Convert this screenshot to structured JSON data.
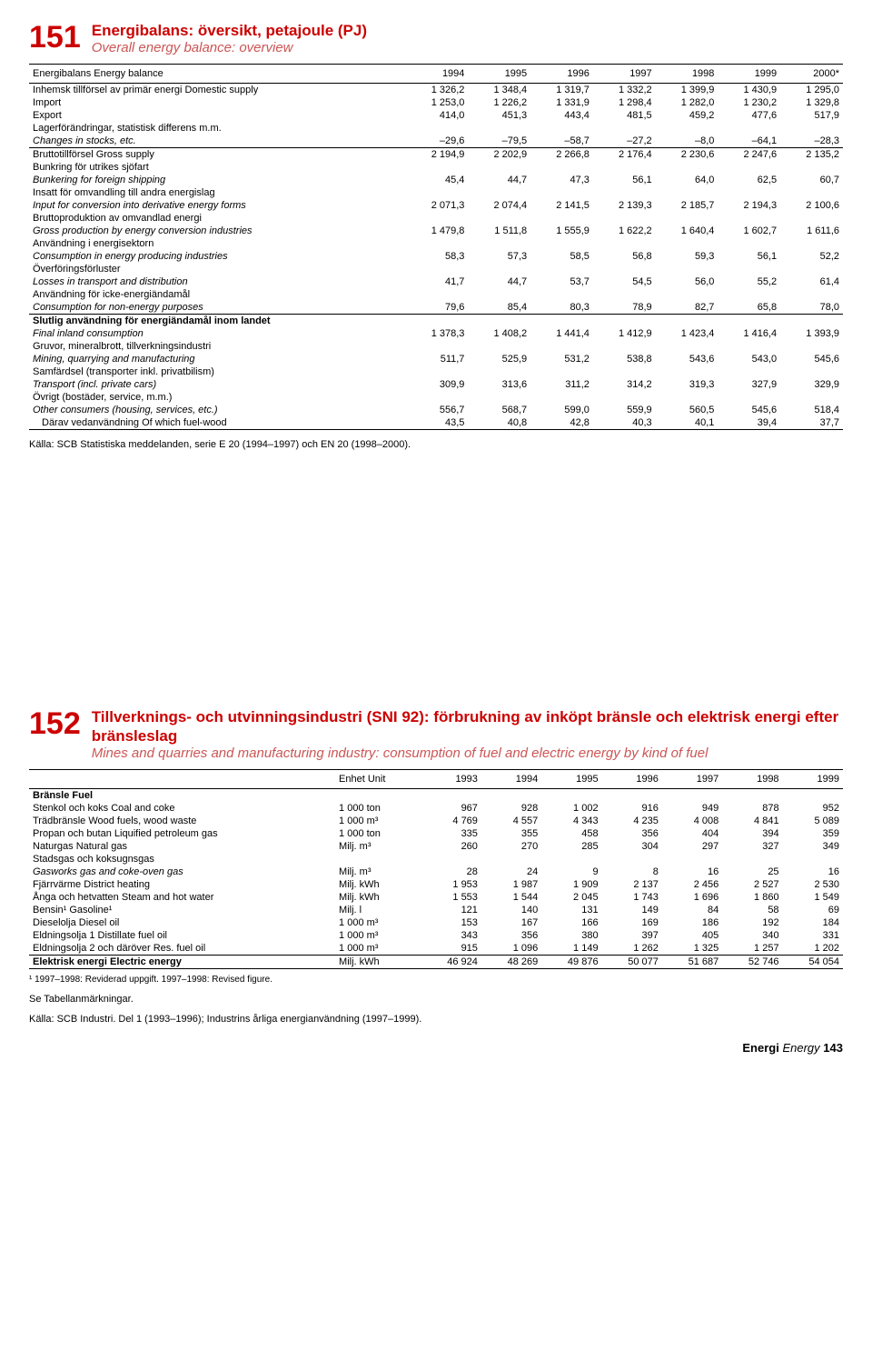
{
  "sec151": {
    "num": "151",
    "title_sv": "Energibalans: översikt, petajoule (PJ)",
    "title_en": "Overall energy balance: overview",
    "col_label": "Energibalans Energy balance",
    "years": [
      "1994",
      "1995",
      "1996",
      "1997",
      "1998",
      "1999",
      "2000*"
    ],
    "rows": [
      {
        "label": "Inhemsk tillförsel av primär energi Domestic supply",
        "vals": [
          "1 326,2",
          "1 348,4",
          "1 319,7",
          "1 332,2",
          "1 399,9",
          "1 430,9",
          "1 295,0"
        ]
      },
      {
        "label": "Import",
        "vals": [
          "1 253,0",
          "1 226,2",
          "1 331,9",
          "1 298,4",
          "1 282,0",
          "1 230,2",
          "1 329,8"
        ]
      },
      {
        "label": "Export",
        "vals": [
          "414,0",
          "451,3",
          "443,4",
          "481,5",
          "459,2",
          "477,6",
          "517,9"
        ]
      },
      {
        "label": "Lagerförändringar, statistisk differens m.m.",
        "vals": [
          "",
          "",
          "",
          "",
          "",
          "",
          ""
        ]
      },
      {
        "label": "Changes in stocks, etc.",
        "italic": true,
        "vals": [
          "–29,6",
          "–79,5",
          "–58,7",
          "–27,2",
          "–8,0",
          "–64,1",
          "–28,3"
        ]
      },
      {
        "label": "Bruttotillförsel Gross supply",
        "vals": [
          "2 194,9",
          "2 202,9",
          "2 266,8",
          "2 176,4",
          "2 230,6",
          "2 247,6",
          "2 135,2"
        ],
        "sep": true
      },
      {
        "label": "Bunkring för utrikes sjöfart",
        "vals": [
          "",
          "",
          "",
          "",
          "",
          "",
          ""
        ]
      },
      {
        "label": "Bunkering for foreign shipping",
        "italic": true,
        "vals": [
          "45,4",
          "44,7",
          "47,3",
          "56,1",
          "64,0",
          "62,5",
          "60,7"
        ]
      },
      {
        "label": "Insatt för omvandling till andra energislag",
        "vals": [
          "",
          "",
          "",
          "",
          "",
          "",
          ""
        ]
      },
      {
        "label": "Input for conversion into derivative energy forms",
        "italic": true,
        "vals": [
          "2 071,3",
          "2 074,4",
          "2 141,5",
          "2 139,3",
          "2 185,7",
          "2 194,3",
          "2 100,6"
        ]
      },
      {
        "label": "Bruttoproduktion av omvandlad energi",
        "vals": [
          "",
          "",
          "",
          "",
          "",
          "",
          ""
        ]
      },
      {
        "label": "Gross production by energy conversion industries",
        "italic": true,
        "vals": [
          "1 479,8",
          "1 511,8",
          "1 555,9",
          "1 622,2",
          "1 640,4",
          "1 602,7",
          "1 611,6"
        ]
      },
      {
        "label": "Användning i energisektorn",
        "vals": [
          "",
          "",
          "",
          "",
          "",
          "",
          ""
        ]
      },
      {
        "label": "Consumption in energy producing industries",
        "italic": true,
        "vals": [
          "58,3",
          "57,3",
          "58,5",
          "56,8",
          "59,3",
          "56,1",
          "52,2"
        ]
      },
      {
        "label": "Överföringsförluster",
        "vals": [
          "",
          "",
          "",
          "",
          "",
          "",
          ""
        ]
      },
      {
        "label": "Losses in transport and distribution",
        "italic": true,
        "vals": [
          "41,7",
          "44,7",
          "53,7",
          "54,5",
          "56,0",
          "55,2",
          "61,4"
        ]
      },
      {
        "label": "Användning för icke-energiändamål",
        "vals": [
          "",
          "",
          "",
          "",
          "",
          "",
          ""
        ]
      },
      {
        "label": "Consumption for non-energy purposes",
        "italic": true,
        "vals": [
          "79,6",
          "85,4",
          "80,3",
          "78,9",
          "82,7",
          "65,8",
          "78,0"
        ]
      },
      {
        "label": "Slutlig användning för energiändamål inom landet",
        "bold": true,
        "vals": [
          "",
          "",
          "",
          "",
          "",
          "",
          ""
        ],
        "sep": true
      },
      {
        "label": "Final inland consumption",
        "italic": true,
        "vals": [
          "1 378,3",
          "1 408,2",
          "1 441,4",
          "1 412,9",
          "1 423,4",
          "1 416,4",
          "1 393,9"
        ]
      },
      {
        "label": "Gruvor, mineralbrott, tillverkningsindustri",
        "vals": [
          "",
          "",
          "",
          "",
          "",
          "",
          ""
        ]
      },
      {
        "label": "Mining, quarrying and manufacturing",
        "italic": true,
        "vals": [
          "511,7",
          "525,9",
          "531,2",
          "538,8",
          "543,6",
          "543,0",
          "545,6"
        ]
      },
      {
        "label": "Samfärdsel (transporter inkl. privatbilism)",
        "vals": [
          "",
          "",
          "",
          "",
          "",
          "",
          ""
        ]
      },
      {
        "label": "Transport (incl. private cars)",
        "italic": true,
        "vals": [
          "309,9",
          "313,6",
          "311,2",
          "314,2",
          "319,3",
          "327,9",
          "329,9"
        ]
      },
      {
        "label": "Övrigt (bostäder, service, m.m.)",
        "vals": [
          "",
          "",
          "",
          "",
          "",
          "",
          ""
        ]
      },
      {
        "label": "Other consumers (housing, services, etc.)",
        "italic": true,
        "vals": [
          "556,7",
          "568,7",
          "599,0",
          "559,9",
          "560,5",
          "545,6",
          "518,4"
        ]
      },
      {
        "label": "Därav vedanvändning Of which fuel-wood",
        "indent": true,
        "vals": [
          "43,5",
          "40,8",
          "42,8",
          "40,3",
          "40,1",
          "39,4",
          "37,7"
        ]
      }
    ],
    "source": "Källa: SCB Statistiska meddelanden, serie E 20 (1994–1997) och EN 20 (1998–2000)."
  },
  "sec152": {
    "num": "152",
    "title_sv": "Tillverknings- och utvinningsindustri (SNI 92): förbrukning av inköpt bränsle och elektrisk energi efter bränsleslag",
    "title_en": "Mines and quarries and manufacturing industry: consumption of fuel and electric energy by kind of fuel",
    "unit_label": "Enhet Unit",
    "years": [
      "1993",
      "1994",
      "1995",
      "1996",
      "1997",
      "1998",
      "1999"
    ],
    "group1_label": "Bränsle Fuel",
    "rows": [
      {
        "label": "Stenkol och koks Coal and coke",
        "unit": "1 000 ton",
        "vals": [
          "967",
          "928",
          "1 002",
          "916",
          "949",
          "878",
          "952"
        ]
      },
      {
        "label": "Trädbränsle Wood fuels, wood waste",
        "unit": "1 000 m³",
        "vals": [
          "4 769",
          "4 557",
          "4 343",
          "4 235",
          "4 008",
          "4 841",
          "5 089"
        ]
      },
      {
        "label": "Propan och butan Liquified petroleum gas",
        "unit": "1 000 ton",
        "vals": [
          "335",
          "355",
          "458",
          "356",
          "404",
          "394",
          "359"
        ]
      },
      {
        "label": "Naturgas Natural gas",
        "unit": "Milj. m³",
        "vals": [
          "260",
          "270",
          "285",
          "304",
          "297",
          "327",
          "349"
        ]
      },
      {
        "label": "Stadsgas och koksugnsgas",
        "unit": "",
        "vals": [
          "",
          "",
          "",
          "",
          "",
          "",
          ""
        ]
      },
      {
        "label": "Gasworks gas and coke-oven gas",
        "italic": true,
        "unit": "Milj. m³",
        "vals": [
          "28",
          "24",
          "9",
          "8",
          "16",
          "25",
          "16"
        ]
      },
      {
        "label": "Fjärrvärme District heating",
        "unit": "Milj. kWh",
        "vals": [
          "1 953",
          "1 987",
          "1 909",
          "2 137",
          "2 456",
          "2 527",
          "2 530"
        ]
      },
      {
        "label": "Ånga och hetvatten Steam and hot water",
        "unit": "Milj. kWh",
        "vals": [
          "1 553",
          "1 544",
          "2 045",
          "1 743",
          "1 696",
          "1 860",
          "1 549"
        ]
      },
      {
        "label": "Bensin¹ Gasoline¹",
        "unit": "Milj. l",
        "vals": [
          "121",
          "140",
          "131",
          "149",
          "84",
          "58",
          "69"
        ]
      },
      {
        "label": "Dieselolja Diesel oil",
        "unit": "1 000 m³",
        "vals": [
          "153",
          "167",
          "166",
          "169",
          "186",
          "192",
          "184"
        ]
      },
      {
        "label": "Eldningsolja 1 Distillate fuel oil",
        "unit": "1 000 m³",
        "vals": [
          "343",
          "356",
          "380",
          "397",
          "405",
          "340",
          "331"
        ]
      },
      {
        "label": "Eldningsolja 2 och däröver Res. fuel oil",
        "unit": "1 000 m³",
        "vals": [
          "915",
          "1 096",
          "1 149",
          "1 262",
          "1 325",
          "1 257",
          "1 202"
        ]
      }
    ],
    "row_elec": {
      "label": "Elektrisk energi Electric energy",
      "unit": "Milj. kWh",
      "vals": [
        "46 924",
        "48 269",
        "49 876",
        "50 077",
        "51 687",
        "52 746",
        "54 054"
      ]
    },
    "footnote": "¹ 1997–1998: Reviderad uppgift. 1997–1998: Revised figure.",
    "see": "Se Tabellanmärkningar.",
    "source": "Källa: SCB Industri. Del 1 (1993–1996); Industrins årliga energianvändning (1997–1999)."
  },
  "footer": {
    "sv": "Energi",
    "en": "Energy",
    "page": "143"
  }
}
